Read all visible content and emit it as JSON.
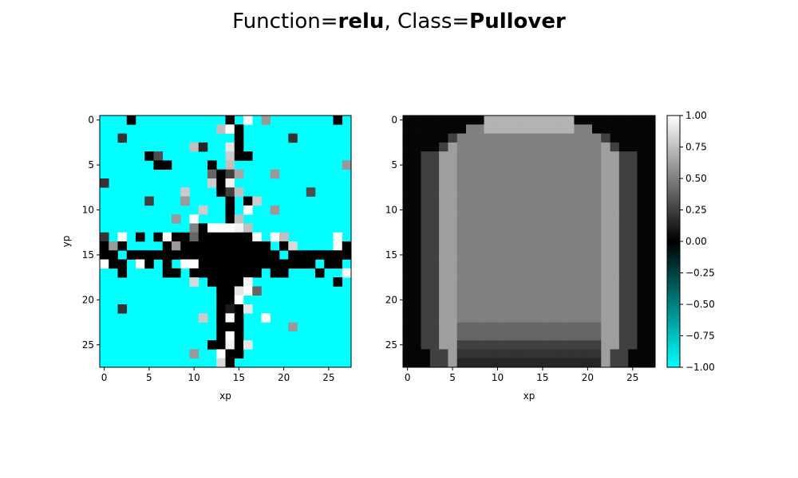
{
  "figure": {
    "title_prefix": "Function=",
    "title_function": "relu",
    "title_separator": ", Class=",
    "title_class": "Pullover"
  },
  "chart_data": [
    {
      "type": "heatmap",
      "name": "relu-attribution",
      "grid": [
        28,
        28
      ],
      "value_range": [
        -1,
        1
      ],
      "xlabel": "xp",
      "ylabel": "yp",
      "xticks": [
        "0",
        "5",
        "10",
        "15",
        "20",
        "25"
      ],
      "yticks": [
        "0",
        "5",
        "10",
        "15",
        "20",
        "25"
      ],
      "colormap": "cyan-black-white diverging",
      "background_value": -1.0,
      "cells": [
        [
          0,
          3,
          0.0
        ],
        [
          0,
          14,
          0.0
        ],
        [
          0,
          16,
          1.0
        ],
        [
          0,
          18,
          0.6
        ],
        [
          0,
          26,
          0.0
        ],
        [
          1,
          13,
          0.75
        ],
        [
          1,
          14,
          1.0
        ],
        [
          1,
          15,
          0.0
        ],
        [
          2,
          2,
          0.2
        ],
        [
          2,
          15,
          0.0
        ],
        [
          2,
          21,
          0.2
        ],
        [
          3,
          10,
          0.75
        ],
        [
          3,
          11,
          0.15
        ],
        [
          3,
          14,
          0.9
        ],
        [
          3,
          15,
          0.0
        ],
        [
          4,
          5,
          0.0
        ],
        [
          4,
          6,
          0.3
        ],
        [
          4,
          14,
          0.8
        ],
        [
          4,
          15,
          0.0
        ],
        [
          4,
          16,
          0.0
        ],
        [
          5,
          6,
          0.0
        ],
        [
          5,
          7,
          0.0
        ],
        [
          5,
          12,
          0.0
        ],
        [
          5,
          14,
          0.75
        ],
        [
          5,
          27,
          0.6
        ],
        [
          6,
          12,
          0.4
        ],
        [
          6,
          13,
          0.0
        ],
        [
          6,
          14,
          0.25
        ],
        [
          6,
          15,
          0.65
        ],
        [
          6,
          19,
          0.6
        ],
        [
          7,
          0,
          0.2
        ],
        [
          7,
          12,
          0.8
        ],
        [
          7,
          13,
          0.0
        ],
        [
          7,
          14,
          0.95
        ],
        [
          8,
          9,
          0.8
        ],
        [
          8,
          13,
          0.0
        ],
        [
          8,
          14,
          0.25
        ],
        [
          8,
          15,
          0.75
        ],
        [
          8,
          23,
          0.3
        ],
        [
          9,
          5,
          0.25
        ],
        [
          9,
          9,
          0.6
        ],
        [
          9,
          14,
          0.0
        ],
        [
          9,
          16,
          0.0
        ],
        [
          9,
          17,
          0.8
        ],
        [
          10,
          11,
          0.8
        ],
        [
          10,
          14,
          0.0
        ],
        [
          10,
          16,
          1.0
        ],
        [
          10,
          19,
          0.6
        ],
        [
          11,
          8,
          0.6
        ],
        [
          11,
          10,
          1.0
        ],
        [
          11,
          14,
          0.0
        ],
        [
          11,
          15,
          0.75
        ],
        [
          12,
          10,
          0.5
        ],
        [
          12,
          11,
          0.0
        ],
        [
          12,
          12,
          1.0
        ],
        [
          12,
          13,
          1.0
        ],
        [
          12,
          14,
          1.0
        ],
        [
          12,
          15,
          0.95
        ],
        [
          12,
          16,
          0.75
        ],
        [
          13,
          0,
          0.2
        ],
        [
          13,
          2,
          1.0
        ],
        [
          13,
          4,
          0.0
        ],
        [
          13,
          6,
          0.0
        ],
        [
          13,
          7,
          1.0
        ],
        [
          13,
          8,
          0.0
        ],
        [
          13,
          9,
          0.0
        ],
        [
          13,
          10,
          0.4
        ],
        [
          13,
          11,
          0.0
        ],
        [
          13,
          12,
          0.0
        ],
        [
          13,
          13,
          0.0
        ],
        [
          13,
          14,
          0.0
        ],
        [
          13,
          15,
          0.0
        ],
        [
          13,
          16,
          0.0
        ],
        [
          13,
          17,
          1.0
        ],
        [
          13,
          19,
          1.0
        ],
        [
          13,
          20,
          0.75
        ],
        [
          13,
          26,
          1.0
        ],
        [
          14,
          0,
          0.0
        ],
        [
          14,
          1,
          0.6
        ],
        [
          14,
          2,
          0.0
        ],
        [
          14,
          7,
          0.0
        ],
        [
          14,
          8,
          0.6
        ],
        [
          14,
          9,
          0.0
        ],
        [
          14,
          10,
          0.0
        ],
        [
          14,
          11,
          0.0
        ],
        [
          14,
          12,
          0.0
        ],
        [
          14,
          13,
          0.0
        ],
        [
          14,
          14,
          0.0
        ],
        [
          14,
          15,
          0.0
        ],
        [
          14,
          16,
          0.0
        ],
        [
          14,
          17,
          0.0
        ],
        [
          14,
          18,
          0.0
        ],
        [
          14,
          20,
          0.0
        ],
        [
          14,
          21,
          0.85
        ],
        [
          14,
          26,
          1.0
        ],
        [
          14,
          27,
          0.0
        ],
        [
          15,
          0,
          0.0
        ],
        [
          15,
          1,
          0.0
        ],
        [
          15,
          3,
          0.0
        ],
        [
          15,
          4,
          0.0
        ],
        [
          15,
          5,
          0.0
        ],
        [
          15,
          6,
          0.0
        ],
        [
          15,
          7,
          0.0
        ],
        [
          15,
          8,
          0.0
        ],
        [
          15,
          9,
          0.0
        ],
        [
          15,
          10,
          0.0
        ],
        [
          15,
          11,
          0.0
        ],
        [
          15,
          12,
          0.0
        ],
        [
          15,
          13,
          0.0
        ],
        [
          15,
          14,
          0.0
        ],
        [
          15,
          15,
          0.0
        ],
        [
          15,
          16,
          0.0
        ],
        [
          15,
          17,
          0.0
        ],
        [
          15,
          18,
          0.0
        ],
        [
          15,
          19,
          0.0
        ],
        [
          15,
          21,
          0.0
        ],
        [
          15,
          22,
          0.0
        ],
        [
          15,
          23,
          0.0
        ],
        [
          15,
          24,
          0.0
        ],
        [
          15,
          25,
          0.0
        ],
        [
          15,
          26,
          0.0
        ],
        [
          15,
          27,
          0.0
        ],
        [
          16,
          0,
          1.0
        ],
        [
          16,
          1,
          0.0
        ],
        [
          16,
          2,
          0.0
        ],
        [
          16,
          4,
          1.0
        ],
        [
          16,
          5,
          0.0
        ],
        [
          16,
          7,
          0.0
        ],
        [
          16,
          9,
          1.0
        ],
        [
          16,
          10,
          1.0
        ],
        [
          16,
          11,
          0.0
        ],
        [
          16,
          12,
          0.0
        ],
        [
          16,
          13,
          0.0
        ],
        [
          16,
          14,
          0.0
        ],
        [
          16,
          15,
          0.0
        ],
        [
          16,
          16,
          0.0
        ],
        [
          16,
          17,
          0.0
        ],
        [
          16,
          18,
          0.0
        ],
        [
          16,
          19,
          0.0
        ],
        [
          16,
          20,
          0.0
        ],
        [
          16,
          21,
          0.0
        ],
        [
          16,
          22,
          0.0
        ],
        [
          16,
          23,
          0.0
        ],
        [
          16,
          25,
          0.0
        ],
        [
          16,
          26,
          0.0
        ],
        [
          17,
          2,
          0.0
        ],
        [
          17,
          7,
          0.0
        ],
        [
          17,
          8,
          0.0
        ],
        [
          17,
          10,
          0.0
        ],
        [
          17,
          11,
          0.0
        ],
        [
          17,
          12,
          0.0
        ],
        [
          17,
          13,
          0.0
        ],
        [
          17,
          14,
          0.0
        ],
        [
          17,
          15,
          0.0
        ],
        [
          17,
          16,
          0.0
        ],
        [
          17,
          17,
          0.0
        ],
        [
          17,
          19,
          0.0
        ],
        [
          17,
          20,
          0.0
        ],
        [
          17,
          24,
          0.0
        ],
        [
          17,
          27,
          1.0
        ],
        [
          18,
          10,
          0.85
        ],
        [
          18,
          12,
          0.0
        ],
        [
          18,
          13,
          0.0
        ],
        [
          18,
          14,
          0.0
        ],
        [
          18,
          15,
          0.0
        ],
        [
          18,
          16,
          0.95
        ],
        [
          18,
          26,
          0.0
        ],
        [
          19,
          13,
          0.0
        ],
        [
          19,
          14,
          0.0
        ],
        [
          19,
          15,
          0.9
        ],
        [
          19,
          16,
          1.0
        ],
        [
          19,
          17,
          0.4
        ],
        [
          20,
          13,
          0.0
        ],
        [
          20,
          14,
          0.0
        ],
        [
          20,
          15,
          1.0
        ],
        [
          21,
          2,
          0.2
        ],
        [
          21,
          13,
          0.0
        ],
        [
          21,
          14,
          0.1
        ],
        [
          21,
          15,
          0.0
        ],
        [
          21,
          16,
          0.9
        ],
        [
          22,
          11,
          0.8
        ],
        [
          22,
          13,
          0.0
        ],
        [
          22,
          14,
          1.0
        ],
        [
          22,
          15,
          0.0
        ],
        [
          22,
          18,
          1.0
        ],
        [
          23,
          13,
          0.0
        ],
        [
          23,
          14,
          0.0
        ],
        [
          23,
          15,
          0.0
        ],
        [
          23,
          21,
          0.6
        ],
        [
          24,
          13,
          0.0
        ],
        [
          24,
          14,
          1.0
        ],
        [
          24,
          15,
          0.0
        ],
        [
          25,
          12,
          0.0
        ],
        [
          25,
          13,
          0.0
        ],
        [
          25,
          14,
          0.95
        ],
        [
          25,
          15,
          0.0
        ],
        [
          25,
          16,
          0.9
        ],
        [
          26,
          10,
          0.6
        ],
        [
          26,
          13,
          1.0
        ],
        [
          26,
          14,
          0.0
        ],
        [
          26,
          15,
          0.0
        ],
        [
          27,
          13,
          0.85
        ],
        [
          27,
          14,
          0.0
        ]
      ]
    },
    {
      "type": "heatmap",
      "name": "pullover-input",
      "grid": [
        28,
        28
      ],
      "value_range": [
        -1,
        1
      ],
      "xlabel": "xp",
      "xticks": [
        "0",
        "5",
        "10",
        "15",
        "20",
        "25"
      ],
      "yticks": [
        "0",
        "5",
        "10",
        "15",
        "20",
        "25"
      ],
      "colormap": "cyan-black-white diverging",
      "description_values": {
        "background": 0.0,
        "sleeve_edge_highlight": 0.62,
        "body_fill": 0.5,
        "shoulder_top": 0.7,
        "hem_band": 0.25
      }
    }
  ],
  "colorbar": {
    "ticks": [
      "1.00",
      "0.75",
      "0.50",
      "0.25",
      "0.00",
      "−0.25",
      "−0.50",
      "−0.75",
      "−1.00"
    ],
    "value_range": [
      -1,
      1
    ]
  }
}
